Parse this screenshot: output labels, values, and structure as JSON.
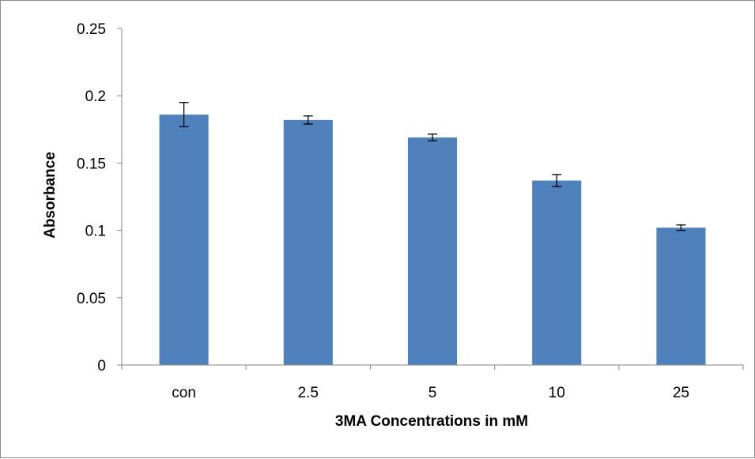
{
  "chart_data": {
    "type": "bar",
    "title": "",
    "xlabel": "3MA Concentrations in mM",
    "ylabel": "Absorbance",
    "categories": [
      "con",
      "2.5",
      "5",
      "10",
      "25"
    ],
    "values": [
      0.186,
      0.182,
      0.169,
      0.137,
      0.102
    ],
    "error": [
      0.009,
      0.003,
      0.0025,
      0.0045,
      0.002
    ],
    "ylim": [
      0,
      0.25
    ],
    "yticks": [
      0,
      0.05,
      0.1,
      0.15,
      0.2,
      0.25
    ],
    "ytick_labels": [
      "0",
      "0.05",
      "0.1",
      "0.15",
      "0.2",
      "0.25"
    ],
    "grid": false,
    "legend": "none",
    "colors": {
      "bar": "#4f81bd",
      "axis": "#868686",
      "text": "#000000",
      "error_bar": "#000000",
      "frame": "#8c8c8c"
    }
  }
}
